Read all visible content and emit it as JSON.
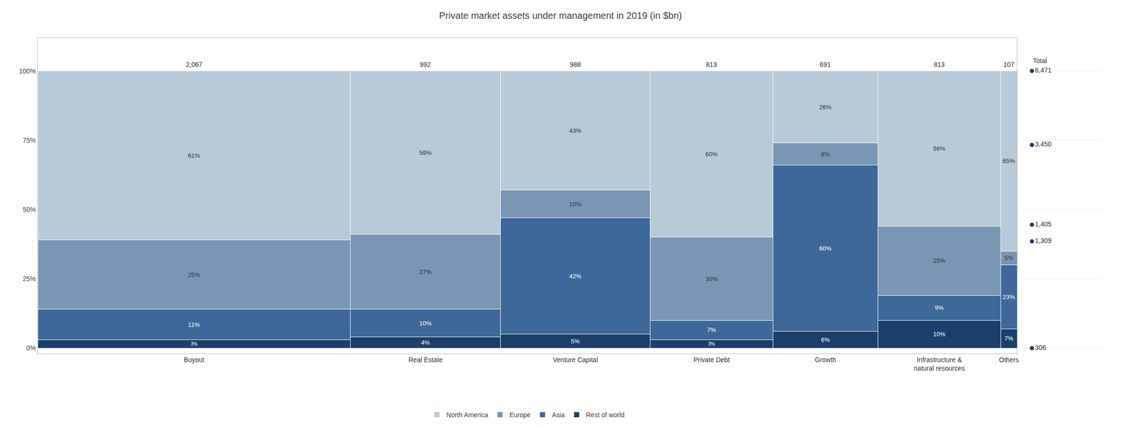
{
  "chart_data": {
    "type": "bar",
    "title": "Private market assets under management in 2019 (in $bn)",
    "categories": [
      "Buyout",
      "Real Estate",
      "Venture Capital",
      "Private Debt",
      "Growth",
      "Infrastructure &\nnatural resources",
      "Others"
    ],
    "totals": [
      2067,
      992,
      988,
      813,
      691,
      813,
      107
    ],
    "total_labels": [
      "2,067",
      "992",
      "988",
      "813",
      "691",
      "813",
      "107"
    ],
    "series": [
      {
        "name": "Rest of world",
        "color": "#1b3f6a",
        "values": [
          3,
          4,
          5,
          3,
          6,
          10,
          7
        ],
        "value_labels": [
          "3%",
          "4%",
          "5%",
          "3%",
          "6%",
          "10%",
          "7%"
        ]
      },
      {
        "name": "Asia",
        "color": "#3d6899",
        "values": [
          11,
          10,
          42,
          7,
          60,
          9,
          23
        ],
        "value_labels": [
          "11%",
          "10%",
          "42%",
          "7%",
          "60%",
          "9%",
          "23%"
        ]
      },
      {
        "name": "Europe",
        "color": "#7a96b4",
        "values": [
          25,
          27,
          10,
          30,
          8,
          25,
          5
        ],
        "value_labels": [
          "25%",
          "27%",
          "10%",
          "30%",
          "8%",
          "25%",
          "5%"
        ]
      },
      {
        "name": "North America",
        "color": "#b8cad8",
        "values": [
          61,
          59,
          43,
          60,
          26,
          56,
          65
        ],
        "value_labels": [
          "61%",
          "59%",
          "43%",
          "60%",
          "26%",
          "56%",
          "65%"
        ]
      }
    ],
    "right_annotations": {
      "title": "Total",
      "color": "#1b3f6a",
      "points": [
        {
          "y": 100,
          "label": "6,471"
        },
        {
          "y": 73.3,
          "label": "3,450"
        },
        {
          "y": 44.5,
          "label": "1,405"
        },
        {
          "y": 38.5,
          "label": "1,309"
        },
        {
          "y": 0,
          "label": "306"
        }
      ]
    },
    "ylim": [
      -2,
      112
    ],
    "yticks": [
      {
        "value": 0,
        "label": "0%"
      },
      {
        "value": 25,
        "label": "25%"
      },
      {
        "value": 50,
        "label": "50%"
      },
      {
        "value": 75,
        "label": "75%"
      },
      {
        "value": 100,
        "label": "100%"
      }
    ],
    "grid": true,
    "legend": "bottom",
    "stacked": true,
    "data_labels": true,
    "tick_labels": "y"
  }
}
